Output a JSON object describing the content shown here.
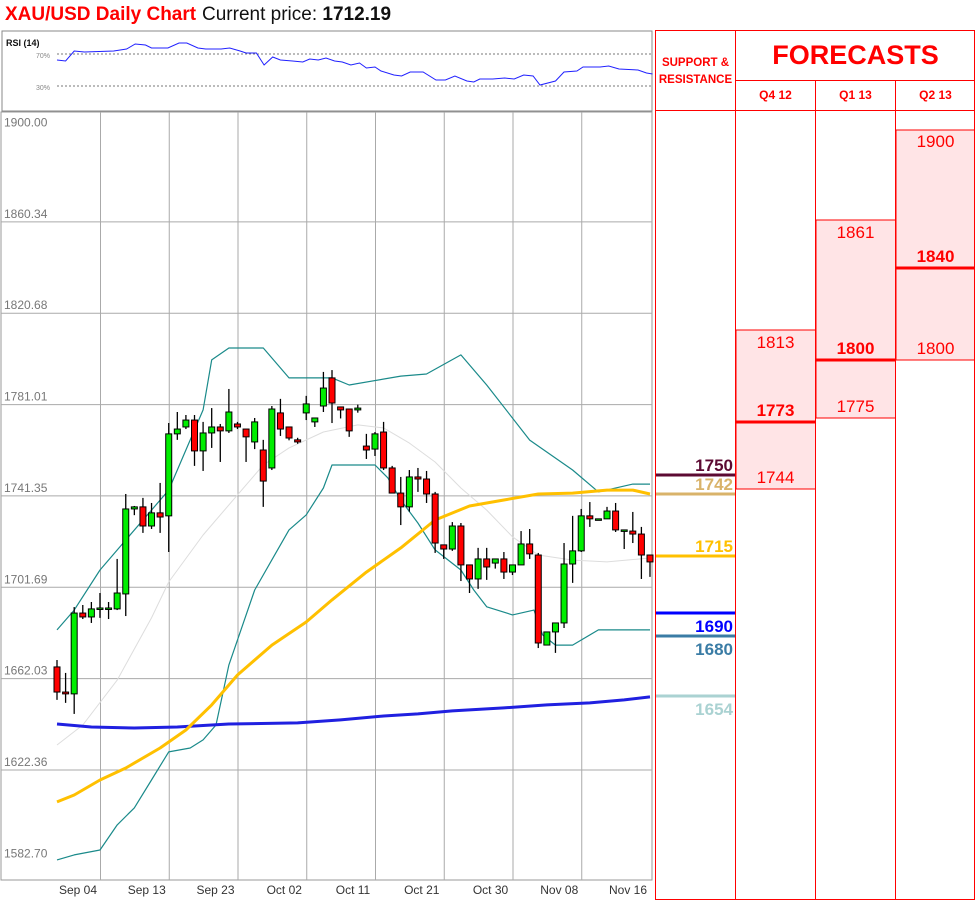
{
  "header": {
    "title": "XAU/USD Daily Chart",
    "current_price_label": "Current price:",
    "current_price": "1712.19"
  },
  "colors": {
    "title": "#ff0000",
    "up_candle": "#00ee00",
    "down_candle": "#ff0000",
    "bollinger": "#1a8a8a",
    "bollinger_mid": "#dddddd",
    "ma_yellow": "#ffc000",
    "ma_blue": "#2020e0",
    "rsi_line": "#2020ff",
    "forecast_fill": "#ffe4e6",
    "table_border": "#ff0000"
  },
  "chart_data": [
    {
      "type": "candlestick",
      "title": "XAU/USD Daily Chart",
      "ylim": [
        1582.7,
        1900.0
      ],
      "y_ticks": [
        "1900.00",
        "1860.34",
        "1820.68",
        "1781.01",
        "1741.35",
        "1701.69",
        "1662.03",
        "1622.36",
        "1582.70"
      ],
      "x_tick_labels": [
        "Sep 04",
        "Sep 13",
        "Sep 23",
        "Oct 02",
        "Oct 11",
        "Oct 21",
        "Oct 30",
        "Nov 08",
        "Nov 16"
      ],
      "grid": true,
      "ohlc": [
        [
          1667.1,
          1670.1,
          1652.8,
          1656.2
        ],
        [
          1656.2,
          1664.5,
          1651.5,
          1655.4
        ],
        [
          1655.4,
          1693.1,
          1646.7,
          1690.5
        ],
        [
          1690.5,
          1694.0,
          1687.9,
          1688.8
        ],
        [
          1688.8,
          1695.3,
          1686.2,
          1692.3
        ],
        [
          1692.7,
          1699.2,
          1688.4,
          1692.7
        ],
        [
          1692.7,
          1695.3,
          1687.9,
          1692.7
        ],
        [
          1692.3,
          1714.0,
          1691.8,
          1699.2
        ],
        [
          1698.8,
          1742.2,
          1689.2,
          1735.7
        ],
        [
          1735.7,
          1737.0,
          1733.0,
          1736.6
        ],
        [
          1736.6,
          1740.5,
          1725.3,
          1728.3
        ],
        [
          1728.3,
          1738.3,
          1727.0,
          1734.0
        ],
        [
          1734.0,
          1747.0,
          1725.3,
          1732.2
        ],
        [
          1732.7,
          1773.0,
          1717.0,
          1768.3
        ],
        [
          1768.3,
          1777.8,
          1765.7,
          1770.4
        ],
        [
          1771.3,
          1776.5,
          1770.4,
          1774.3
        ],
        [
          1774.3,
          1776.5,
          1754.4,
          1760.9
        ],
        [
          1760.9,
          1773.5,
          1752.2,
          1768.7
        ],
        [
          1768.7,
          1779.5,
          1762.2,
          1771.3
        ],
        [
          1771.3,
          1772.6,
          1756.1,
          1769.6
        ],
        [
          1769.6,
          1787.8,
          1768.7,
          1777.8
        ],
        [
          1772.6,
          1773.5,
          1770.4,
          1771.3
        ],
        [
          1770.4,
          1770.4,
          1756.1,
          1767.0
        ],
        [
          1764.8,
          1775.2,
          1761.7,
          1773.5
        ],
        [
          1761.3,
          1765.7,
          1736.6,
          1747.8
        ],
        [
          1753.5,
          1780.4,
          1752.6,
          1779.1
        ],
        [
          1777.4,
          1783.5,
          1767.4,
          1770.4
        ],
        [
          1771.3,
          1771.3,
          1765.5,
          1766.5
        ],
        [
          1765.7,
          1766.6,
          1764.0,
          1764.8
        ],
        [
          1777.4,
          1784.8,
          1774.3,
          1781.3
        ],
        [
          1773.5,
          1775.2,
          1771.3,
          1775.2
        ],
        [
          1780.4,
          1795.2,
          1777.8,
          1788.2
        ],
        [
          1792.6,
          1796.0,
          1773.0,
          1781.7
        ],
        [
          1780.0,
          1780.0,
          1775.0,
          1778.7
        ],
        [
          1779.1,
          1779.1,
          1767.0,
          1769.6
        ],
        [
          1778.7,
          1781.0,
          1777.5,
          1779.5
        ],
        [
          1763.0,
          1768.3,
          1757.4,
          1761.3
        ],
        [
          1761.7,
          1769.1,
          1758.7,
          1768.3
        ],
        [
          1769.1,
          1773.5,
          1752.6,
          1753.5
        ],
        [
          1753.5,
          1754.4,
          1742.6,
          1742.6
        ],
        [
          1742.6,
          1749.6,
          1728.7,
          1736.6
        ],
        [
          1736.6,
          1752.6,
          1734.5,
          1749.6
        ],
        [
          1749.6,
          1753.5,
          1743.1,
          1748.7
        ],
        [
          1748.7,
          1752.2,
          1738.3,
          1742.2
        ],
        [
          1742.2,
          1743.1,
          1716.6,
          1720.9
        ],
        [
          1720.1,
          1720.1,
          1714.0,
          1718.3
        ],
        [
          1718.3,
          1730.0,
          1717.5,
          1728.3
        ],
        [
          1728.3,
          1729.6,
          1704.4,
          1711.4
        ],
        [
          1711.4,
          1711.4,
          1699.2,
          1705.3
        ],
        [
          1705.3,
          1718.8,
          1701.0,
          1714.0
        ],
        [
          1714.0,
          1718.8,
          1704.9,
          1710.5
        ],
        [
          1712.2,
          1714.0,
          1709.8,
          1714.0
        ],
        [
          1714.0,
          1717.0,
          1705.3,
          1708.3
        ],
        [
          1708.3,
          1711.4,
          1707.0,
          1711.4
        ],
        [
          1711.4,
          1726.1,
          1711.4,
          1720.5
        ],
        [
          1720.5,
          1727.0,
          1714.0,
          1716.2
        ],
        [
          1715.7,
          1716.6,
          1675.3,
          1677.5
        ],
        [
          1676.6,
          1682.3,
          1676.6,
          1682.3
        ],
        [
          1682.3,
          1686.2,
          1673.2,
          1686.2
        ],
        [
          1686.2,
          1720.9,
          1684.0,
          1711.8
        ],
        [
          1711.8,
          1732.7,
          1703.6,
          1717.5
        ],
        [
          1717.5,
          1735.7,
          1717.0,
          1732.7
        ],
        [
          1732.7,
          1738.7,
          1727.9,
          1731.4
        ],
        [
          1731.4,
          1731.4,
          1731.4,
          1731.4
        ],
        [
          1731.4,
          1736.6,
          1731.4,
          1734.8
        ],
        [
          1734.8,
          1738.3,
          1725.7,
          1726.6
        ],
        [
          1726.6,
          1726.6,
          1718.3,
          1726.6
        ],
        [
          1726.1,
          1734.4,
          1720.9,
          1724.8
        ],
        [
          1724.8,
          1727.9,
          1705.3,
          1715.7
        ],
        [
          1715.7,
          1715.7,
          1706.2,
          1712.7
        ]
      ],
      "overlays": {
        "bollinger_upper": [
          [
            0,
            1683.2
          ],
          [
            2,
            1691.8
          ],
          [
            5,
            1709.2
          ],
          [
            8,
            1722.2
          ],
          [
            13,
            1743.9
          ],
          [
            17,
            1778.7
          ],
          [
            18,
            1800.4
          ],
          [
            20,
            1805.6
          ],
          [
            24,
            1805.6
          ],
          [
            27,
            1792.6
          ],
          [
            32,
            1792.6
          ],
          [
            34,
            1789.5
          ],
          [
            40,
            1793.4
          ],
          [
            43,
            1794.3
          ],
          [
            47,
            1802.6
          ],
          [
            50,
            1789.5
          ],
          [
            55,
            1765.6
          ],
          [
            60,
            1752.6
          ],
          [
            63,
            1743.1
          ],
          [
            67,
            1746.5
          ],
          [
            69,
            1746.5
          ]
        ],
        "bollinger_lower": [
          [
            0,
            1583.3
          ],
          [
            2,
            1585.5
          ],
          [
            5,
            1587.6
          ],
          [
            7,
            1598.5
          ],
          [
            9,
            1605.9
          ],
          [
            11,
            1618.0
          ],
          [
            13,
            1630.2
          ],
          [
            15.5,
            1631.9
          ],
          [
            17,
            1635.4
          ],
          [
            18.5,
            1641.9
          ],
          [
            20,
            1668.0
          ],
          [
            23,
            1700.5
          ],
          [
            25,
            1713.6
          ],
          [
            27,
            1726.6
          ],
          [
            29,
            1733.1
          ],
          [
            31,
            1744.8
          ],
          [
            32,
            1754.8
          ],
          [
            37,
            1754.8
          ],
          [
            38.5,
            1749.2
          ],
          [
            40,
            1739.6
          ],
          [
            42,
            1729.6
          ],
          [
            44,
            1717.9
          ],
          [
            47,
            1709.2
          ],
          [
            48.5,
            1700.5
          ],
          [
            50,
            1693.2
          ],
          [
            53,
            1689.7
          ],
          [
            55.5,
            1691.8
          ],
          [
            56.5,
            1681.0
          ],
          [
            58,
            1676.6
          ],
          [
            60,
            1676.6
          ],
          [
            63,
            1683.2
          ],
          [
            69,
            1683.2
          ]
        ],
        "bollinger_middle": [
          [
            0,
            1633.2
          ],
          [
            3,
            1641.9
          ],
          [
            7,
            1661.4
          ],
          [
            11,
            1688.4
          ],
          [
            13,
            1704.0
          ],
          [
            17,
            1724.4
          ],
          [
            21,
            1741.8
          ],
          [
            24,
            1754.8
          ],
          [
            27,
            1762.2
          ],
          [
            31,
            1769.1
          ],
          [
            35,
            1772.2
          ],
          [
            38,
            1770.9
          ],
          [
            41,
            1764.3
          ],
          [
            44,
            1756.1
          ],
          [
            47,
            1744.8
          ],
          [
            50,
            1735.2
          ],
          [
            53,
            1723.6
          ],
          [
            56,
            1715.7
          ],
          [
            60,
            1713.5
          ],
          [
            64,
            1712.7
          ],
          [
            69,
            1714.4
          ]
        ],
        "ma_yellow": [
          [
            0,
            1608.5
          ],
          [
            2,
            1611.5
          ],
          [
            5,
            1618.0
          ],
          [
            8,
            1623.2
          ],
          [
            12,
            1631.9
          ],
          [
            15,
            1639.7
          ],
          [
            18,
            1650.6
          ],
          [
            21,
            1663.6
          ],
          [
            25,
            1676.6
          ],
          [
            29,
            1686.6
          ],
          [
            32,
            1696.2
          ],
          [
            36,
            1708.3
          ],
          [
            40,
            1718.8
          ],
          [
            44,
            1730.9
          ],
          [
            48,
            1737.0
          ],
          [
            52,
            1739.6
          ],
          [
            56,
            1742.2
          ],
          [
            60,
            1742.6
          ],
          [
            64,
            1743.9
          ],
          [
            67,
            1743.9
          ],
          [
            69,
            1742.2
          ]
        ],
        "ma_blue": [
          [
            0,
            1642.3
          ],
          [
            4,
            1641.0
          ],
          [
            9,
            1640.6
          ],
          [
            14,
            1641.0
          ],
          [
            20,
            1642.3
          ],
          [
            28,
            1642.8
          ],
          [
            33,
            1644.1
          ],
          [
            38,
            1645.8
          ],
          [
            42,
            1646.7
          ],
          [
            46,
            1648.0
          ],
          [
            52,
            1649.3
          ],
          [
            57,
            1650.6
          ],
          [
            62,
            1651.5
          ],
          [
            66,
            1652.8
          ],
          [
            69,
            1654.1
          ]
        ]
      }
    },
    {
      "type": "line",
      "title": "RSI (14)",
      "ylim": [
        0,
        100
      ],
      "reference_lines": [
        {
          "value": 70,
          "label": "70%"
        },
        {
          "value": 30,
          "label": "30%"
        }
      ],
      "points": [
        [
          0,
          62.5
        ],
        [
          1,
          61.3
        ],
        [
          2,
          73.8
        ],
        [
          3.2,
          72.5
        ],
        [
          6.6,
          73.8
        ],
        [
          8.1,
          76.3
        ],
        [
          9.1,
          82.5
        ],
        [
          10.3,
          81.3
        ],
        [
          11,
          77.5
        ],
        [
          12.2,
          77.5
        ],
        [
          12.9,
          77.5
        ],
        [
          14.2,
          83.8
        ],
        [
          15.1,
          83.8
        ],
        [
          16.4,
          77.5
        ],
        [
          17.3,
          76.3
        ],
        [
          19.1,
          76.3
        ],
        [
          20.1,
          77.5
        ],
        [
          21.3,
          73.8
        ],
        [
          22,
          71.3
        ],
        [
          23.2,
          71.3
        ],
        [
          24.1,
          56.3
        ],
        [
          25.1,
          66.3
        ],
        [
          26,
          62.5
        ],
        [
          27.4,
          61.3
        ],
        [
          28.6,
          60
        ],
        [
          29.4,
          63.8
        ],
        [
          30.4,
          62.5
        ],
        [
          31.3,
          65
        ],
        [
          32.3,
          61.3
        ],
        [
          33.2,
          60
        ],
        [
          34.2,
          56.3
        ],
        [
          35.2,
          58.8
        ],
        [
          36,
          52.5
        ],
        [
          37,
          53.8
        ],
        [
          37.7,
          48.8
        ],
        [
          39.2,
          43.8
        ],
        [
          40.1,
          42.5
        ],
        [
          41.1,
          47.5
        ],
        [
          42.6,
          47.5
        ],
        [
          44.1,
          37.5
        ],
        [
          45.2,
          37.5
        ],
        [
          46.3,
          42.5
        ],
        [
          47.7,
          36.3
        ],
        [
          48.5,
          35
        ],
        [
          49.2,
          38.8
        ],
        [
          50.7,
          38.8
        ],
        [
          52.1,
          40
        ],
        [
          53.2,
          38.8
        ],
        [
          54.3,
          43.8
        ],
        [
          55.4,
          42.5
        ],
        [
          56.2,
          31.3
        ],
        [
          58,
          36.3
        ],
        [
          59,
          47.5
        ],
        [
          60.5,
          48.8
        ],
        [
          61.2,
          53.8
        ],
        [
          63.2,
          53.8
        ],
        [
          64.2,
          55
        ],
        [
          65.4,
          51.3
        ],
        [
          67.6,
          50
        ],
        [
          68.6,
          46.3
        ],
        [
          69.3,
          45
        ]
      ]
    }
  ],
  "support_resistance": {
    "title": "SUPPORT & RESISTANCE",
    "levels": [
      {
        "value": "1750",
        "price": 1750,
        "color": "#5c0a32",
        "label_pos": "above"
      },
      {
        "value": "1742",
        "price": 1742,
        "color": "#d9b36a",
        "label_pos": "above"
      },
      {
        "value": "1715",
        "price": 1715,
        "color": "#ffc000",
        "label_pos": "above"
      },
      {
        "value": "1690",
        "price": 1690,
        "color": "#0000ff",
        "label_pos": "below"
      },
      {
        "value": "1680",
        "price": 1680,
        "color": "#3a7ca5",
        "label_pos": "below"
      },
      {
        "value": "1654",
        "price": 1654,
        "color": "#aad2d2",
        "label_pos": "below"
      }
    ]
  },
  "forecasts": {
    "title": "FORECASTS",
    "quarters": [
      {
        "label": "Q4 12",
        "high": "1813",
        "mid": "1773",
        "low": "1744"
      },
      {
        "label": "Q1 13",
        "high": "1861",
        "mid": "1800",
        "low": "1775"
      },
      {
        "label": "Q2 13",
        "high": "1900",
        "mid": "1840",
        "low": "1800"
      }
    ]
  }
}
